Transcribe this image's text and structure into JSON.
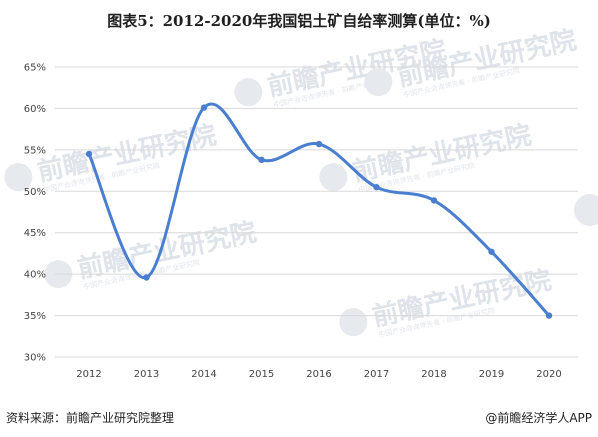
{
  "header": {
    "title": "图表5：2012-2020年我国铝土矿自给率测算(单位：%)"
  },
  "footer": {
    "source": "资料来源：前瞻产业研究院整理",
    "credit": "@前瞻经济学人APP"
  },
  "watermark": {
    "text": "前瞻产业研究院",
    "sub": "中国产业咨询领先者 · 前瞻产业研究院"
  },
  "colors": {
    "line": "#4a7fcf",
    "grid": "#d9d9d9",
    "watermark": "#e3e7ed"
  },
  "chart_data": {
    "type": "line",
    "title": "图表5：2012-2020年我国铝土矿自给率测算(单位：%)",
    "xlabel": "",
    "ylabel": "",
    "categories": [
      "2012",
      "2013",
      "2014",
      "2015",
      "2016",
      "2017",
      "2018",
      "2019",
      "2020"
    ],
    "series": [
      {
        "values": [
          54.5,
          39.6,
          60.1,
          53.8,
          55.7,
          50.5,
          48.9,
          42.7,
          35.0
        ]
      }
    ],
    "ylim": [
      30,
      65
    ],
    "yticks": [
      30,
      35,
      40,
      45,
      50,
      55,
      60,
      65
    ],
    "ytick_labels": [
      "30%",
      "35%",
      "40%",
      "45%",
      "50%",
      "55%",
      "60%",
      "65%"
    ],
    "grid": true,
    "legend": "none",
    "smooth": true
  }
}
